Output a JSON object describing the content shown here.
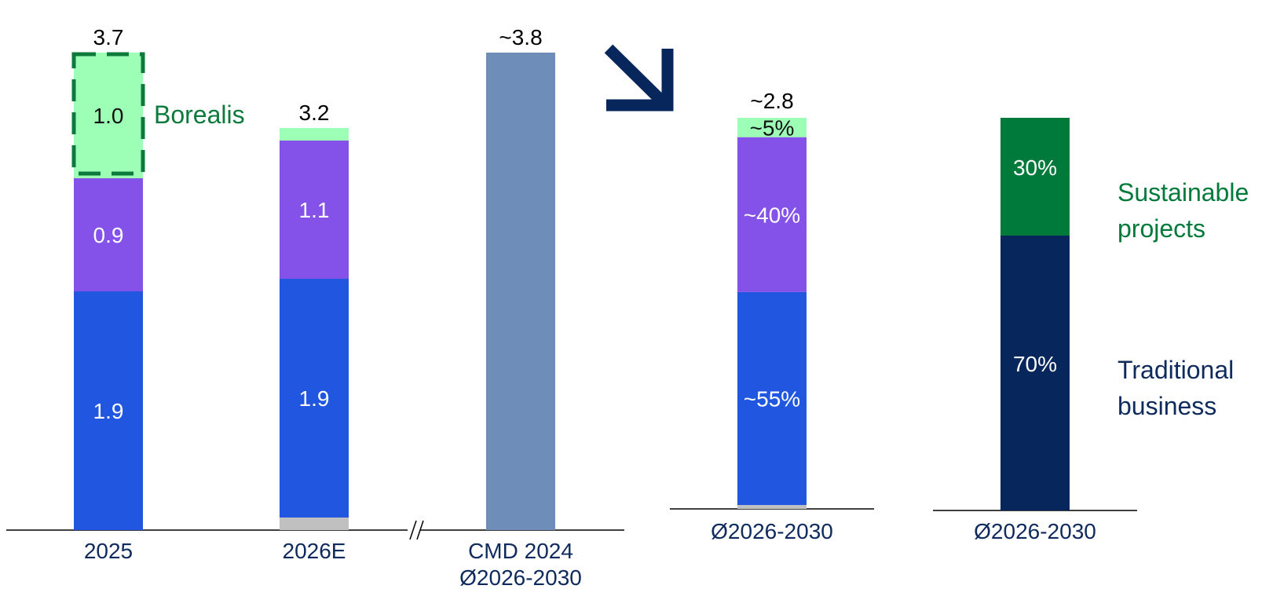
{
  "chart_data": [
    {
      "type": "bar",
      "stacked": true,
      "categories": [
        "2025",
        "2026E",
        "CMD 2024\nØ2026-2030"
      ],
      "series": [
        {
          "name": "",
          "color": "#c0c0c0",
          "values": [
            0,
            0.1,
            null
          ]
        },
        {
          "name": "",
          "color": "#2056e0",
          "values": [
            1.9,
            1.9,
            null
          ]
        },
        {
          "name": "",
          "color": "#8452e8",
          "values": [
            0.9,
            1.1,
            null
          ]
        },
        {
          "name": "Borealis",
          "color": "#9dffb5",
          "values": [
            1.0,
            0.1,
            null
          ]
        },
        {
          "name": "",
          "color": "#6e8db8",
          "values": [
            null,
            null,
            3.8
          ]
        }
      ],
      "segment_labels": [
        [
          "",
          "1.9",
          "0.9",
          "1.0",
          ""
        ],
        [
          "",
          "1.9",
          "1.1",
          "",
          ""
        ],
        [
          "",
          "",
          "",
          "",
          ""
        ]
      ],
      "totals": [
        "3.7",
        "3.2",
        "~3.8"
      ],
      "highlight": {
        "category": "2025",
        "series": "Borealis",
        "label": "Borealis",
        "color": "#0b7a3a"
      },
      "axis_break": "//",
      "ylim": [
        0,
        3.8
      ]
    },
    {
      "type": "bar",
      "stacked": true,
      "categories": [
        "Ø2026-2030"
      ],
      "total": "~2.8",
      "series": [
        {
          "name": "",
          "color": "#c0c0c0",
          "value_pct": 1
        },
        {
          "name": "",
          "color": "#2056e0",
          "value_pct": 55,
          "label": "~55%"
        },
        {
          "name": "",
          "color": "#8452e8",
          "value_pct": 40,
          "label": "~40%"
        },
        {
          "name": "",
          "color": "#9dffb5",
          "value_pct": 5,
          "label": "~5%"
        }
      ]
    },
    {
      "type": "bar",
      "stacked": true,
      "categories": [
        "Ø2026-2030"
      ],
      "series": [
        {
          "name": "Traditional business",
          "color": "#07265b",
          "value_pct": 70,
          "label": "70%"
        },
        {
          "name": "Sustainable projects",
          "color": "#007a3a",
          "value_pct": 30,
          "label": "30%"
        }
      ],
      "legend": [
        {
          "text": "Sustainable projects",
          "lines": [
            "Sustainable",
            "projects"
          ],
          "color": "#007a3a"
        },
        {
          "text": "Traditional business",
          "lines": [
            "Traditional",
            "business"
          ],
          "color": "#0f2a5c"
        }
      ]
    }
  ],
  "arrow": {
    "icon": "arrow-down-right-icon",
    "color": "#07265b"
  }
}
